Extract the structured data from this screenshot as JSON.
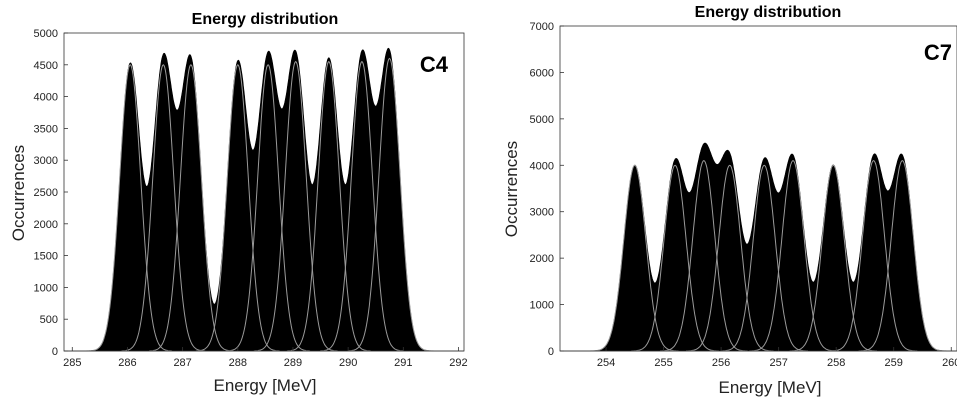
{
  "chart_data": [
    {
      "type": "area",
      "title": "Energy distribution",
      "panel_label": "C4",
      "xlabel": "Energy [MeV]",
      "ylabel": "Occurrences",
      "xlim": [
        284.85,
        292.1
      ],
      "ylim": [
        0,
        5000
      ],
      "xticks": [
        285,
        286,
        287,
        288,
        289,
        290,
        291,
        292
      ],
      "yticks": [
        0,
        500,
        1000,
        1500,
        2000,
        2500,
        3000,
        3500,
        4000,
        4500,
        5000
      ],
      "sigma": 0.19,
      "series": [
        {
          "values": [
            {
              "x": 286.05,
              "y": 4500
            },
            {
              "x": 286.65,
              "y": 4500
            },
            {
              "x": 287.15,
              "y": 4500
            },
            {
              "x": 288.0,
              "y": 4500
            },
            {
              "x": 288.55,
              "y": 4500
            },
            {
              "x": 289.05,
              "y": 4550
            },
            {
              "x": 289.65,
              "y": 4550
            },
            {
              "x": 290.25,
              "y": 4550
            },
            {
              "x": 290.75,
              "y": 4600
            }
          ]
        }
      ]
    },
    {
      "type": "area",
      "title": "Energy distribution",
      "panel_label": "C7",
      "xlabel": "Energy [MeV]",
      "ylabel": "Occurrences",
      "xlim": [
        253.2,
        260.1
      ],
      "ylim": [
        0,
        7000
      ],
      "xticks": [
        254,
        255,
        256,
        257,
        258,
        259,
        260
      ],
      "yticks": [
        0,
        1000,
        2000,
        3000,
        4000,
        5000,
        6000,
        7000
      ],
      "sigma": 0.19,
      "series": [
        {
          "values": [
            {
              "x": 254.5,
              "y": 4000
            },
            {
              "x": 255.2,
              "y": 4000
            },
            {
              "x": 255.7,
              "y": 4100
            },
            {
              "x": 256.15,
              "y": 4000
            },
            {
              "x": 256.75,
              "y": 4000
            },
            {
              "x": 257.25,
              "y": 4100
            },
            {
              "x": 257.95,
              "y": 4000
            },
            {
              "x": 258.65,
              "y": 4100
            },
            {
              "x": 259.15,
              "y": 4100
            }
          ]
        }
      ]
    }
  ]
}
